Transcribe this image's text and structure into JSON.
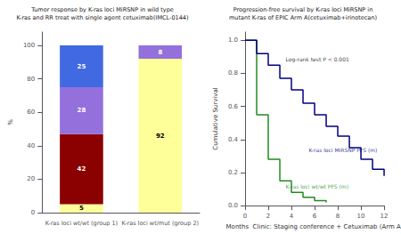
{
  "chart_data": [
    {
      "type": "bar",
      "title": "Tumor response by K-ras loci MiRSNP in wild type",
      "subtitle": "K-ras and RR treat with single agent cetuximab(IMCL-0144)",
      "categories": [
        "K-ras loci wt/wt (group 1)",
        "K-ras loci wt/mut (group 2)"
      ],
      "series": [
        {
          "color": "#FFFF99",
          "values": [
            5,
            92
          ]
        },
        {
          "color": "#8B0000",
          "values": [
            42,
            0
          ]
        },
        {
          "color": "#9370DB",
          "values": [
            28,
            8
          ]
        },
        {
          "color": "#4169E1",
          "values": [
            25,
            0
          ]
        }
      ],
      "stacked": true,
      "data_labels": true,
      "ylabel": "%",
      "ylim": [
        0,
        108
      ],
      "yticks": [
        0,
        20,
        40,
        60,
        80,
        100
      ],
      "grid": false
    },
    {
      "type": "line",
      "title": "Progression-free survival by K-ras loci MiRSNP in",
      "subtitle": "mutant K-ras of EPIC Arm A(cetuximab+irinotecan)",
      "xlabel": "Months  Clinic: Staging conference + Cetuximab (Arm A)",
      "ylabel": "Cumulative Survival",
      "series": [
        {
          "color": "#228B22",
          "x": [
            0,
            1,
            1,
            2,
            2,
            3,
            3,
            4,
            4,
            5,
            5,
            6,
            6,
            7,
            7
          ],
          "values": [
            1.0,
            1.0,
            0.55,
            0.55,
            0.28,
            0.28,
            0.15,
            0.15,
            0.08,
            0.08,
            0.05,
            0.05,
            0.03,
            0.03,
            0.02
          ]
        },
        {
          "color": "#000080",
          "x": [
            0,
            1,
            1,
            2,
            2,
            3,
            3,
            4,
            4,
            5,
            5,
            6,
            6,
            7,
            7,
            8,
            8,
            9,
            9,
            10,
            10,
            11,
            11,
            12,
            12
          ],
          "values": [
            1.0,
            1.0,
            0.92,
            0.92,
            0.85,
            0.85,
            0.77,
            0.77,
            0.7,
            0.7,
            0.62,
            0.62,
            0.55,
            0.55,
            0.48,
            0.48,
            0.42,
            0.42,
            0.35,
            0.35,
            0.28,
            0.28,
            0.22,
            0.22,
            0.18
          ]
        }
      ],
      "xlim": [
        0,
        12
      ],
      "xticks": [
        0,
        2,
        4,
        6,
        8,
        10,
        12
      ],
      "ylim": [
        0,
        1.05
      ],
      "yticks": [
        {
          "value": 0,
          "label": "0.0"
        },
        0.2,
        0.4,
        0.6,
        0.8,
        {
          "value": 1.0,
          "label": "1.0"
        }
      ],
      "annotations": [
        {
          "text": "Log-rank test P < 0.001",
          "x": 3.5,
          "y": 0.87,
          "color": "#000000"
        },
        {
          "text": "K-ras loci MiRSNP PFS (m)",
          "x": 5.5,
          "y": 0.32,
          "color": "#000080"
        },
        {
          "text": "K-ras loci wt/wt PFS (m)",
          "x": 3.5,
          "y": 0.1,
          "color": "#228B22"
        }
      ],
      "grid": false
    }
  ]
}
